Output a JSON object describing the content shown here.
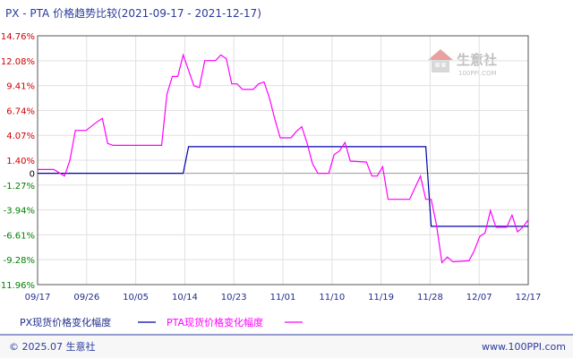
{
  "header": {
    "title": "PX - PTA 价格趋势比较(2021-09-17 - 2021-12-17)"
  },
  "watermark": {
    "brand": "生意社",
    "site": "100PPI.COM"
  },
  "footer": {
    "copyright": "© 2025.07 生意社",
    "url": "www.100PPI.com"
  },
  "colors": {
    "positive": "#cc0000",
    "negative": "#008000",
    "zero": "#000000",
    "px": "#0000aa",
    "pta": "#ff00ff",
    "frame": "#555555",
    "grid": "#e0e0e0"
  },
  "chart_data": {
    "type": "line",
    "title": "PX - PTA 价格趋势比较(2021-09-17 - 2021-12-17)",
    "x_range": [
      "2021-09-17",
      "2021-12-17"
    ],
    "x_ticks": [
      "09/17",
      "09/26",
      "10/05",
      "10/14",
      "10/23",
      "11/01",
      "11/10",
      "11/19",
      "11/28",
      "12/07",
      "12/17"
    ],
    "y_ticks": [
      "14.76%",
      "12.08%",
      "9.41%",
      "6.74%",
      "4.07%",
      "1.40%",
      "0",
      "-1.27%",
      "-3.94%",
      "-6.61%",
      "-9.28%",
      "-11.96%"
    ],
    "y_tick_values": [
      14.76,
      12.08,
      9.41,
      6.74,
      4.07,
      1.4,
      0,
      -1.27,
      -3.94,
      -6.61,
      -9.28,
      -11.96
    ],
    "ylim": [
      -11.96,
      14.76
    ],
    "grid": true,
    "legend_position": "bottom-left",
    "series": [
      {
        "name": "PX现货价格变化幅度",
        "color": "#0000aa",
        "points": [
          [
            0,
            0
          ],
          [
            27,
            0
          ],
          [
            28,
            2.85
          ],
          [
            72,
            2.85
          ],
          [
            73,
            -5.7
          ],
          [
            91,
            -5.7
          ]
        ]
      },
      {
        "name": "PTA现货价格变化幅度",
        "color": "#ff00ff",
        "points": [
          [
            0,
            0.4
          ],
          [
            3,
            0.4
          ],
          [
            5,
            -0.3
          ],
          [
            6,
            1.4
          ],
          [
            7,
            4.6
          ],
          [
            9,
            4.6
          ],
          [
            11,
            5.5
          ],
          [
            12,
            5.9
          ],
          [
            13,
            3.2
          ],
          [
            14,
            3.0
          ],
          [
            23,
            3.0
          ],
          [
            24,
            8.5
          ],
          [
            25,
            10.4
          ],
          [
            26,
            10.4
          ],
          [
            27,
            12.7
          ],
          [
            29,
            9.4
          ],
          [
            30,
            9.2
          ],
          [
            31,
            12.1
          ],
          [
            33,
            12.1
          ],
          [
            34,
            12.7
          ],
          [
            35,
            12.3
          ],
          [
            36,
            9.6
          ],
          [
            37,
            9.6
          ],
          [
            38,
            9.0
          ],
          [
            40,
            9.0
          ],
          [
            41,
            9.6
          ],
          [
            42,
            9.8
          ],
          [
            43,
            8.1
          ],
          [
            44,
            5.8
          ],
          [
            45,
            3.8
          ],
          [
            47,
            3.8
          ],
          [
            48,
            4.5
          ],
          [
            49,
            5.0
          ],
          [
            50,
            3.2
          ],
          [
            51,
            1.0
          ],
          [
            52,
            0
          ],
          [
            54,
            0
          ],
          [
            55,
            2.0
          ],
          [
            56,
            2.4
          ],
          [
            57,
            3.3
          ],
          [
            58,
            1.3
          ],
          [
            61,
            1.2
          ],
          [
            62,
            -0.3
          ],
          [
            63,
            -0.3
          ],
          [
            64,
            0.7
          ],
          [
            65,
            -2.8
          ],
          [
            69,
            -2.8
          ],
          [
            71,
            -0.3
          ],
          [
            72,
            -2.8
          ],
          [
            73,
            -2.8
          ],
          [
            74,
            -5.6
          ],
          [
            75,
            -9.6
          ],
          [
            76,
            -9.0
          ],
          [
            77,
            -9.5
          ],
          [
            80,
            -9.4
          ],
          [
            81,
            -8.3
          ],
          [
            82,
            -6.8
          ],
          [
            83,
            -6.4
          ],
          [
            84,
            -4.0
          ],
          [
            85,
            -5.8
          ],
          [
            87,
            -5.8
          ],
          [
            88,
            -4.5
          ],
          [
            89,
            -6.3
          ],
          [
            90,
            -5.8
          ],
          [
            91,
            -5.0
          ]
        ]
      }
    ]
  }
}
